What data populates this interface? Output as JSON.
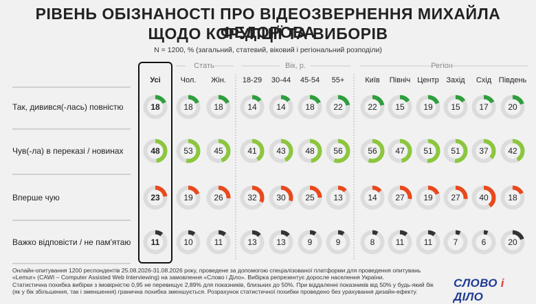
{
  "title_line1": "РІВЕНЬ ОБІЗНАНОСТІ ПРО ВІДЕОЗВЕРНЕННЯ МИХАЙЛА ФЕДОРОВА",
  "title_line2": "ЩОДО КОРУПЦІЇ ТА ВИБОРІВ",
  "subtitle": "N = 1200, % (загальний, статевий, віковий і регіональний розподіли)",
  "groups": [
    "Стать",
    "Вік, р.",
    "Регіон"
  ],
  "footer": [
    "Онлайн-опитування 1200 респондентів 25.08.2026-31.08.2026 року, проведене за допомогою спеціалізованої платформи для проведення опитувань",
    "«Lemur» (CAWI – Computer Assisted Web Interviewing) на замовлення «Слово і Діло». Вибірка репрезентує доросле населення України.",
    "Статистична похибка вибірки з імовірністю 0,95 не перевищує 2,89% для показників, близьких до 50%. При віддаленні показників від 50% у будь-який бік",
    "(як у бік збільшення, так і зменшення) гранична похибка зменшується. Розрахунок статистичної похибки проведено без урахування дизайн-ефекту."
  ],
  "logo": {
    "part1": "СЛОВО",
    "amp": "і",
    "part2": "ДІЛО"
  },
  "colors": {
    "row1": "#2e9e3e",
    "row2": "#8cc63f",
    "row3": "#e8491d",
    "row4": "#333333",
    "track": "#dcdcdc"
  },
  "chart_data": {
    "type": "donut-matrix",
    "columns": [
      "Усі",
      "Чол.",
      "Жін.",
      "18-29",
      "30-44",
      "45-54",
      "55+",
      "Київ",
      "Північ",
      "Центр",
      "Захід",
      "Схід",
      "Південь"
    ],
    "rows": [
      {
        "label": "Так, дивився(-лась) повністю",
        "values": [
          18,
          18,
          18,
          14,
          14,
          18,
          22,
          22,
          15,
          19,
          15,
          17,
          20
        ]
      },
      {
        "label": "Чув(-ла) в переказі / новинах",
        "values": [
          48,
          53,
          45,
          41,
          43,
          48,
          56,
          56,
          47,
          51,
          51,
          37,
          42
        ]
      },
      {
        "label": "Вперше чую",
        "values": [
          23,
          19,
          26,
          32,
          30,
          25,
          13,
          14,
          27,
          19,
          27,
          40,
          18
        ]
      },
      {
        "label": "Важко відповісти / не пам'ятаю",
        "values": [
          11,
          10,
          11,
          13,
          13,
          9,
          9,
          8,
          11,
          11,
          7,
          6,
          20
        ]
      }
    ]
  }
}
